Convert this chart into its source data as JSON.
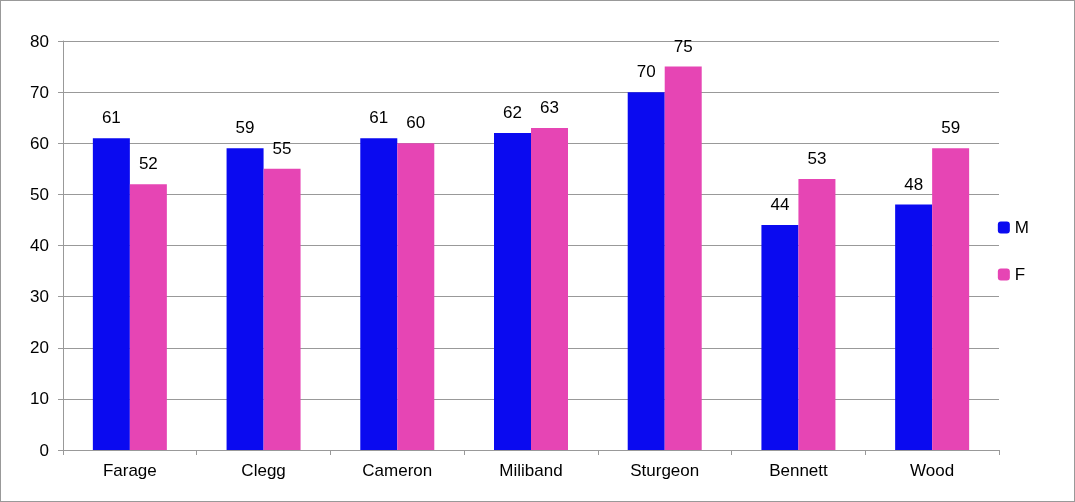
{
  "chart_data": {
    "type": "bar",
    "categories": [
      "Farage",
      "Clegg",
      "Cameron",
      "Miliband",
      "Sturgeon",
      "Bennett",
      "Wood"
    ],
    "series": [
      {
        "name": "M",
        "color": "#0a0af0",
        "values": [
          61,
          59,
          61,
          62,
          70,
          44,
          48
        ]
      },
      {
        "name": "F",
        "color": "#e645b4",
        "values": [
          52,
          55,
          60,
          63,
          75,
          53,
          59
        ]
      }
    ],
    "ylim": [
      0,
      80
    ],
    "yticks": [
      0,
      10,
      20,
      30,
      40,
      50,
      60,
      70,
      80
    ],
    "grid": "y",
    "legend": "right",
    "data_labels": true
  }
}
